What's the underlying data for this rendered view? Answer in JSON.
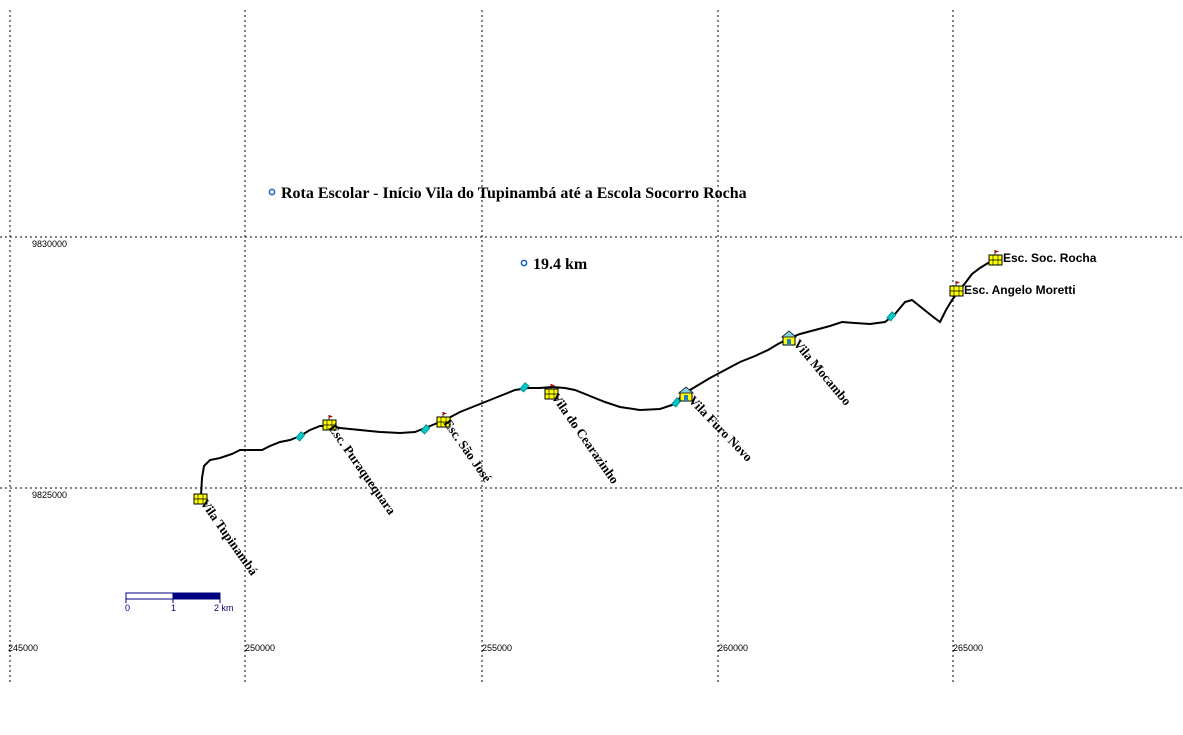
{
  "map": {
    "title": "Rota Escolar - Início Vila do Tupinambá até a Escola Socorro Rocha",
    "distance": "19.4 km",
    "grid": {
      "eastings": [
        "245000",
        "250000",
        "255000",
        "260000",
        "265000"
      ],
      "northings": [
        "9830000",
        "9825000"
      ]
    },
    "scale_bar": {
      "labels": [
        "0",
        "1",
        "2 km"
      ]
    },
    "places": [
      {
        "name": "Vila Tupinambá",
        "type": "village"
      },
      {
        "name": "Esc. Puraquequara",
        "type": "school"
      },
      {
        "name": "Esc. São José",
        "type": "school"
      },
      {
        "name": "Vila do Cearazinho",
        "type": "village"
      },
      {
        "name": "Vila Furo Novo",
        "type": "village"
      },
      {
        "name": "Vila Mocambo",
        "type": "village"
      },
      {
        "name": "Esc. Angelo Moretti",
        "type": "school"
      },
      {
        "name": "Esc. Soc. Rocha",
        "type": "school"
      }
    ],
    "colors": {
      "route": "#000000",
      "grid": "#000000",
      "marker_fill": "#ffff00",
      "crossing": "#00c8c8",
      "scale_dark": "#000080",
      "dot": "#1060c0"
    }
  }
}
